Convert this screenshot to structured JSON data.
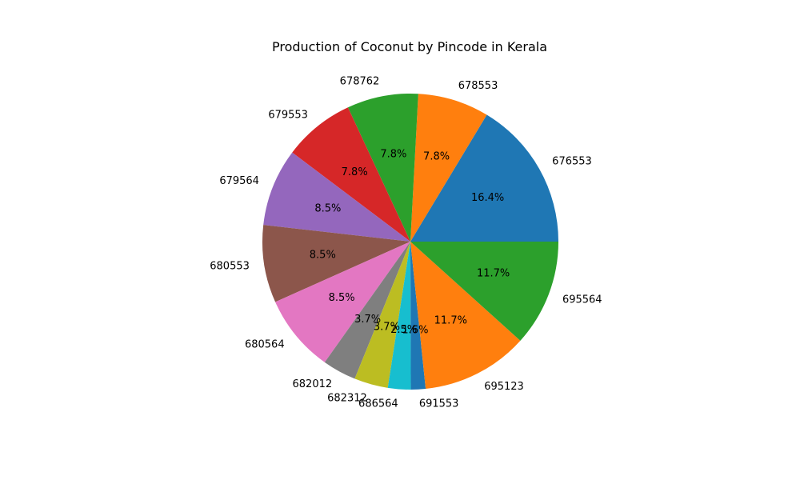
{
  "chart_data": {
    "type": "pie",
    "title": "Production of Coconut by Pincode in Kerala",
    "slices": [
      {
        "label": "676553",
        "percent_label": "16.4%",
        "value": 16.4,
        "color": "#1f77b4"
      },
      {
        "label": "678553",
        "percent_label": "7.8%",
        "value": 7.8,
        "color": "#ff7f0e"
      },
      {
        "label": "678762",
        "percent_label": "7.8%",
        "value": 7.8,
        "color": "#2ca02c"
      },
      {
        "label": "679553",
        "percent_label": "7.8%",
        "value": 7.8,
        "color": "#d62728"
      },
      {
        "label": "679564",
        "percent_label": "8.5%",
        "value": 8.5,
        "color": "#9467bd"
      },
      {
        "label": "680553",
        "percent_label": "8.5%",
        "value": 8.5,
        "color": "#8c564b"
      },
      {
        "label": "680564",
        "percent_label": "8.5%",
        "value": 8.5,
        "color": "#e377c2"
      },
      {
        "label": "682012",
        "percent_label": "3.7%",
        "value": 3.7,
        "color": "#7f7f7f"
      },
      {
        "label": "682312",
        "percent_label": "3.7%",
        "value": 3.7,
        "color": "#bcbd22"
      },
      {
        "label": "686564",
        "percent_label": "2.5%",
        "value": 2.5,
        "color": "#17becf"
      },
      {
        "label": "691553",
        "percent_label": "1.6%",
        "value": 1.6,
        "color": "#1f77b4"
      },
      {
        "label": "695123",
        "percent_label": "11.7%",
        "value": 11.7,
        "color": "#ff7f0e"
      },
      {
        "label": "695564",
        "percent_label": "11.7%",
        "value": 11.7,
        "color": "#2ca02c"
      }
    ],
    "start_angle_deg": 0,
    "direction": "counterclockwise",
    "legend": "none"
  }
}
